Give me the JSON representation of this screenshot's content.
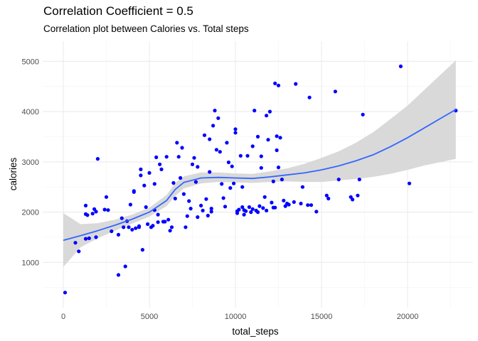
{
  "chart_data": {
    "type": "scatter",
    "title": "Correlation Coefficient = 0.5",
    "subtitle": "Correlation plot between Calories vs. Total steps",
    "xlabel": "total_steps",
    "ylabel": "calories",
    "xlim": [
      -1200,
      23800
    ],
    "ylim": [
      100,
      5400
    ],
    "x_ticks": [
      0,
      5000,
      10000,
      15000,
      20000
    ],
    "y_ticks": [
      1000,
      2000,
      3000,
      4000,
      5000
    ],
    "grid": true,
    "legend": "none",
    "colors": {
      "points": "#0000ff",
      "smooth_line": "#3366ff",
      "confidence_band": "#d9d9d9",
      "grid_major": "#ebebeb",
      "grid_minor": "#f4f4f4"
    },
    "points": [
      [
        100,
        400
      ],
      [
        700,
        1390
      ],
      [
        900,
        1220
      ],
      [
        1300,
        2130
      ],
      [
        1300,
        1960
      ],
      [
        1400,
        1940
      ],
      [
        1300,
        1470
      ],
      [
        1500,
        1480
      ],
      [
        1700,
        1970
      ],
      [
        1800,
        2060
      ],
      [
        1900,
        1500
      ],
      [
        1900,
        2010
      ],
      [
        2000,
        3060
      ],
      [
        2400,
        2050
      ],
      [
        2500,
        2300
      ],
      [
        2600,
        2040
      ],
      [
        2800,
        1620
      ],
      [
        3200,
        750
      ],
      [
        3200,
        1550
      ],
      [
        3400,
        1880
      ],
      [
        3500,
        1700
      ],
      [
        3600,
        920
      ],
      [
        3700,
        1820
      ],
      [
        3800,
        1700
      ],
      [
        3900,
        2150
      ],
      [
        4000,
        1650
      ],
      [
        4100,
        2400
      ],
      [
        4100,
        2420
      ],
      [
        4200,
        1680
      ],
      [
        4400,
        1700
      ],
      [
        4400,
        1720
      ],
      [
        4500,
        2730
      ],
      [
        4500,
        2850
      ],
      [
        4600,
        1250
      ],
      [
        4700,
        2530
      ],
      [
        4800,
        2100
      ],
      [
        4900,
        1760
      ],
      [
        5000,
        2780
      ],
      [
        5100,
        1700
      ],
      [
        5200,
        1730
      ],
      [
        5300,
        2040
      ],
      [
        5300,
        2560
      ],
      [
        5400,
        3090
      ],
      [
        5500,
        1800
      ],
      [
        5500,
        1950
      ],
      [
        5600,
        2950
      ],
      [
        5700,
        2850
      ],
      [
        5800,
        1810
      ],
      [
        5900,
        1810
      ],
      [
        6000,
        3100
      ],
      [
        6100,
        1850
      ],
      [
        6200,
        1630
      ],
      [
        6300,
        1700
      ],
      [
        6400,
        2580
      ],
      [
        6500,
        2270
      ],
      [
        6600,
        3380
      ],
      [
        6700,
        3100
      ],
      [
        6800,
        2680
      ],
      [
        6900,
        3280
      ],
      [
        7000,
        2360
      ],
      [
        7100,
        1700
      ],
      [
        7200,
        1920
      ],
      [
        7300,
        2220
      ],
      [
        7400,
        2070
      ],
      [
        7500,
        2950
      ],
      [
        7600,
        3080
      ],
      [
        7700,
        2600
      ],
      [
        7800,
        1900
      ],
      [
        7800,
        2900
      ],
      [
        8000,
        2130
      ],
      [
        8100,
        2030
      ],
      [
        8200,
        3530
      ],
      [
        8300,
        2260
      ],
      [
        8400,
        1930
      ],
      [
        8500,
        2800
      ],
      [
        8500,
        3450
      ],
      [
        8600,
        2010
      ],
      [
        8600,
        2070
      ],
      [
        8700,
        3720
      ],
      [
        8800,
        4020
      ],
      [
        8900,
        3240
      ],
      [
        9000,
        3870
      ],
      [
        9100,
        3200
      ],
      [
        9200,
        2560
      ],
      [
        9300,
        2280
      ],
      [
        9400,
        2110
      ],
      [
        9500,
        3380
      ],
      [
        9600,
        2990
      ],
      [
        9700,
        2480
      ],
      [
        9800,
        2910
      ],
      [
        9900,
        2570
      ],
      [
        10000,
        3580
      ],
      [
        10000,
        3650
      ],
      [
        10100,
        2020
      ],
      [
        10100,
        1980
      ],
      [
        10200,
        2050
      ],
      [
        10300,
        3120
      ],
      [
        10400,
        2100
      ],
      [
        10400,
        2500
      ],
      [
        10500,
        2040
      ],
      [
        10500,
        1950
      ],
      [
        10600,
        2020
      ],
      [
        10700,
        3120
      ],
      [
        10800,
        2100
      ],
      [
        10900,
        2000
      ],
      [
        11000,
        2060
      ],
      [
        11000,
        3310
      ],
      [
        11100,
        4020
      ],
      [
        11200,
        2030
      ],
      [
        11300,
        3500
      ],
      [
        11300,
        2000
      ],
      [
        11400,
        2120
      ],
      [
        11500,
        2880
      ],
      [
        11500,
        3110
      ],
      [
        11600,
        2080
      ],
      [
        11700,
        2300
      ],
      [
        11800,
        2030
      ],
      [
        11800,
        3920
      ],
      [
        11900,
        3440
      ],
      [
        12000,
        4000
      ],
      [
        12100,
        2190
      ],
      [
        12200,
        2090
      ],
      [
        12200,
        2610
      ],
      [
        12300,
        4560
      ],
      [
        12300,
        2090
      ],
      [
        12400,
        3510
      ],
      [
        12400,
        3230
      ],
      [
        12500,
        4520
      ],
      [
        12500,
        2890
      ],
      [
        12600,
        3480
      ],
      [
        12700,
        2650
      ],
      [
        12800,
        2230
      ],
      [
        12900,
        2120
      ],
      [
        13000,
        2170
      ],
      [
        13100,
        2150
      ],
      [
        13400,
        2200
      ],
      [
        13500,
        4550
      ],
      [
        13800,
        2170
      ],
      [
        13900,
        2500
      ],
      [
        14200,
        2140
      ],
      [
        14300,
        4280
      ],
      [
        14400,
        2140
      ],
      [
        14700,
        2010
      ],
      [
        15300,
        2330
      ],
      [
        15400,
        2270
      ],
      [
        15800,
        4400
      ],
      [
        16000,
        2650
      ],
      [
        16700,
        2300
      ],
      [
        16800,
        2250
      ],
      [
        17100,
        2330
      ],
      [
        17200,
        2650
      ],
      [
        17400,
        3940
      ],
      [
        19600,
        4900
      ],
      [
        20100,
        2570
      ],
      [
        22800,
        4020
      ]
    ],
    "smooth_fit": {
      "x": [
        0,
        1000,
        2000,
        3000,
        4000,
        5000,
        6000,
        6500,
        7000,
        8000,
        9000,
        10000,
        11000,
        12000,
        13000,
        14000,
        15000,
        16000,
        17000,
        18000,
        19000,
        20000,
        21000,
        22000,
        22800
      ],
      "y": [
        1440,
        1530,
        1630,
        1740,
        1860,
        2000,
        2230,
        2450,
        2590,
        2680,
        2690,
        2680,
        2670,
        2700,
        2740,
        2780,
        2840,
        2920,
        3020,
        3140,
        3300,
        3480,
        3680,
        3880,
        4040
      ],
      "lower": [
        910,
        1300,
        1480,
        1630,
        1770,
        1910,
        2120,
        2320,
        2470,
        2570,
        2600,
        2590,
        2580,
        2600,
        2610,
        2600,
        2600,
        2630,
        2660,
        2700,
        2760,
        2840,
        2930,
        3000,
        3060
      ],
      "upper": [
        1980,
        1760,
        1780,
        1850,
        1950,
        2090,
        2340,
        2580,
        2710,
        2790,
        2790,
        2770,
        2760,
        2810,
        2870,
        2960,
        3080,
        3210,
        3380,
        3590,
        3850,
        4120,
        4440,
        4760,
        5020
      ]
    }
  }
}
